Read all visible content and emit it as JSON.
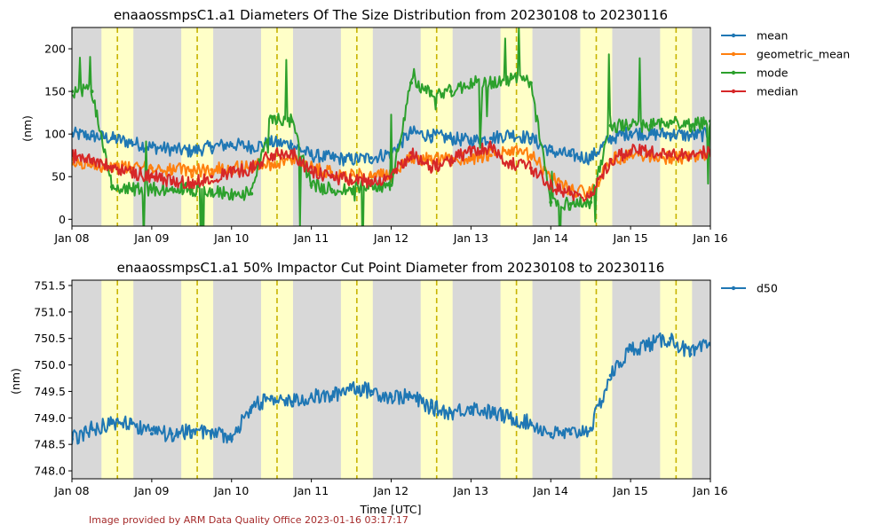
{
  "credit": "Image provided by ARM Data Quality Office 2023-01-16 03:17:17",
  "colors": {
    "mean": "#1f77b4",
    "geometric_mean": "#ff7f0e",
    "mode": "#2ca02c",
    "median": "#d62728",
    "d50": "#1f77b4",
    "night": "#d8d8d8",
    "day": "#ffffc8",
    "noon_line": "#c8b400"
  },
  "chart_data": [
    {
      "type": "line",
      "title": "enaaossmpsC1.a1 Diameters Of The Size Distribution from 20230108 to 20230116",
      "xlabel": "",
      "ylabel": "(nm)",
      "x_unit": "days since Jan 08 00:00 UTC",
      "xlim": [
        0,
        8
      ],
      "ylim": [
        -8,
        225
      ],
      "x_ticks": [
        0,
        1,
        2,
        3,
        4,
        5,
        6,
        7,
        8
      ],
      "x_tick_labels": [
        "Jan 08",
        "Jan 09",
        "Jan 10",
        "Jan 11",
        "Jan 12",
        "Jan 13",
        "Jan 14",
        "Jan 15",
        "Jan 16"
      ],
      "y_ticks": [
        0,
        50,
        100,
        150,
        200
      ],
      "y_tick_labels": [
        "0",
        "50",
        "100",
        "150",
        "200"
      ],
      "legend_position": "outside right, top",
      "daylight_bands": [
        [
          0.37,
          0.77
        ],
        [
          1.37,
          1.77
        ],
        [
          2.37,
          2.77
        ],
        [
          3.37,
          3.77
        ],
        [
          4.37,
          4.77
        ],
        [
          5.37,
          5.77
        ],
        [
          6.37,
          6.77
        ],
        [
          7.37,
          7.77
        ]
      ],
      "solar_noon": [
        0.57,
        1.57,
        2.57,
        3.57,
        4.57,
        5.57,
        6.57,
        7.57
      ],
      "series": [
        {
          "name": "mean",
          "x": [
            0,
            0.25,
            0.5,
            0.75,
            1,
            1.25,
            1.5,
            1.75,
            2,
            2.25,
            2.5,
            2.75,
            3,
            3.25,
            3.5,
            3.75,
            4,
            4.25,
            4.5,
            4.75,
            5,
            5.25,
            5.5,
            5.75,
            6,
            6.25,
            6.5,
            6.75,
            7,
            7.25,
            7.5,
            7.75,
            8
          ],
          "y": [
            100,
            98,
            95,
            90,
            85,
            82,
            80,
            85,
            88,
            85,
            90,
            88,
            75,
            72,
            70,
            72,
            78,
            102,
            98,
            95,
            92,
            95,
            100,
            95,
            80,
            75,
            72,
            95,
            102,
            100,
            100,
            98,
            100
          ]
        },
        {
          "name": "geometric_mean",
          "x": [
            0,
            0.25,
            0.5,
            0.75,
            1,
            1.25,
            1.5,
            1.75,
            2,
            2.25,
            2.5,
            2.75,
            3,
            3.25,
            3.5,
            3.75,
            4,
            4.25,
            4.5,
            4.75,
            5,
            5.25,
            5.5,
            5.75,
            6,
            6.25,
            6.5,
            6.75,
            7,
            7.25,
            7.5,
            7.75,
            8
          ],
          "y": [
            65,
            65,
            62,
            60,
            60,
            58,
            57,
            58,
            60,
            62,
            65,
            70,
            62,
            55,
            52,
            50,
            52,
            72,
            70,
            70,
            72,
            75,
            80,
            75,
            50,
            35,
            30,
            70,
            75,
            75,
            72,
            72,
            75
          ]
        },
        {
          "name": "mode",
          "x": [
            0,
            0.25,
            0.5,
            0.75,
            1,
            1.25,
            1.5,
            1.75,
            2,
            2.25,
            2.5,
            2.75,
            3,
            3.25,
            3.5,
            3.75,
            4,
            4.25,
            4.5,
            4.75,
            5,
            5.25,
            5.5,
            5.75,
            6,
            6.25,
            6.5,
            6.75,
            7,
            7.25,
            7.5,
            7.75,
            8
          ],
          "y": [
            150,
            150,
            38,
            35,
            35,
            35,
            35,
            32,
            30,
            30,
            120,
            115,
            40,
            35,
            35,
            40,
            40,
            160,
            150,
            150,
            160,
            160,
            165,
            160,
            20,
            18,
            20,
            110,
            110,
            110,
            115,
            110,
            115
          ]
        },
        {
          "name": "median",
          "x": [
            0,
            0.25,
            0.5,
            0.75,
            1,
            1.25,
            1.5,
            1.75,
            2,
            2.25,
            2.5,
            2.75,
            3,
            3.25,
            3.5,
            3.75,
            4,
            4.25,
            4.5,
            4.75,
            5,
            5.25,
            5.5,
            5.75,
            6,
            6.25,
            6.5,
            6.75,
            7,
            7.25,
            7.5,
            7.75,
            8
          ],
          "y": [
            75,
            70,
            60,
            55,
            50,
            45,
            42,
            50,
            55,
            60,
            75,
            80,
            55,
            50,
            45,
            45,
            50,
            78,
            60,
            70,
            80,
            85,
            65,
            60,
            40,
            30,
            28,
            70,
            80,
            80,
            75,
            75,
            80
          ]
        }
      ]
    },
    {
      "type": "line",
      "title": "enaaossmpsC1.a1 50% Impactor Cut Point Diameter from 20230108 to 20230116",
      "xlabel": "Time [UTC]",
      "ylabel": "(nm)",
      "x_unit": "days since Jan 08 00:00 UTC",
      "xlim": [
        0,
        8
      ],
      "ylim": [
        747.85,
        751.6
      ],
      "x_ticks": [
        0,
        1,
        2,
        3,
        4,
        5,
        6,
        7,
        8
      ],
      "x_tick_labels": [
        "Jan 08",
        "Jan 09",
        "Jan 10",
        "Jan 11",
        "Jan 12",
        "Jan 13",
        "Jan 14",
        "Jan 15",
        "Jan 16"
      ],
      "y_ticks": [
        748.0,
        748.5,
        749.0,
        749.5,
        750.0,
        750.5,
        751.0,
        751.5
      ],
      "y_tick_labels": [
        "748.0",
        "748.5",
        "749.0",
        "749.5",
        "750.0",
        "750.5",
        "751.0",
        "751.5"
      ],
      "legend_position": "outside right, top",
      "daylight_bands": [
        [
          0.37,
          0.77
        ],
        [
          1.37,
          1.77
        ],
        [
          2.37,
          2.77
        ],
        [
          3.37,
          3.77
        ],
        [
          4.37,
          4.77
        ],
        [
          5.37,
          5.77
        ],
        [
          6.37,
          6.77
        ],
        [
          7.37,
          7.77
        ]
      ],
      "solar_noon": [
        0.57,
        1.57,
        2.57,
        3.57,
        4.57,
        5.57,
        6.57,
        7.57
      ],
      "series": [
        {
          "name": "d50",
          "x": [
            0,
            0.25,
            0.5,
            0.75,
            1,
            1.25,
            1.5,
            1.75,
            2,
            2.25,
            2.5,
            2.75,
            3,
            3.25,
            3.5,
            3.75,
            4,
            4.25,
            4.5,
            4.75,
            5,
            5.25,
            5.5,
            5.75,
            6,
            6.25,
            6.5,
            6.75,
            7,
            7.25,
            7.5,
            7.75,
            8
          ],
          "y": [
            748.6,
            748.8,
            748.9,
            748.9,
            748.7,
            748.7,
            748.75,
            748.75,
            748.6,
            749.2,
            749.4,
            749.3,
            749.4,
            749.4,
            749.6,
            749.5,
            749.4,
            749.4,
            749.2,
            749.1,
            749.2,
            749.1,
            749.0,
            748.9,
            748.7,
            748.7,
            748.8,
            749.8,
            750.3,
            750.4,
            750.5,
            750.2,
            750.4
          ]
        }
      ]
    }
  ]
}
